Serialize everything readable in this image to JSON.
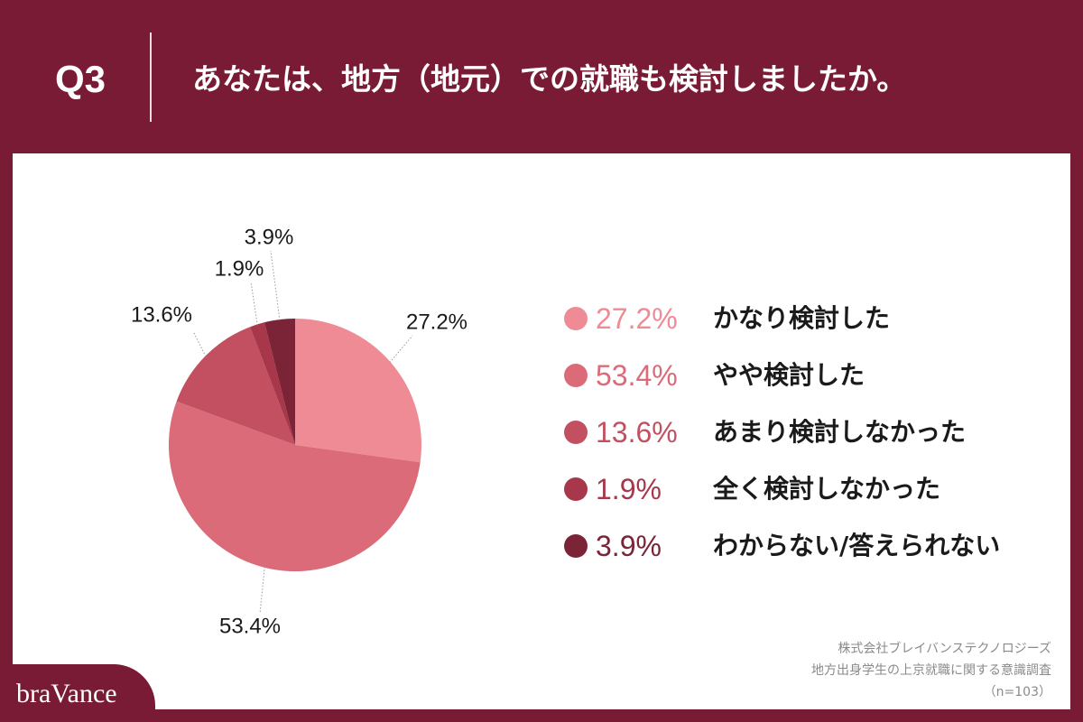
{
  "header": {
    "question_number": "Q3",
    "title": "あなたは、地方（地元）での就職も検討しましたか。"
  },
  "chart_data": {
    "type": "pie",
    "categories": [
      "かなり検討した",
      "やや検討した",
      "あまり検討しなかった",
      "全く検討しなかった",
      "わからない/答えられない"
    ],
    "values": [
      27.2,
      53.4,
      13.6,
      1.9,
      3.9
    ],
    "unit": "%",
    "colors": [
      "#ef8b94",
      "#db6b79",
      "#c25060",
      "#a8374b",
      "#7b2337"
    ],
    "start": "top",
    "direction": "clockwise",
    "legend_position": "right"
  },
  "footer": {
    "company": "株式会社ブレイバンステクノロジーズ",
    "survey_title": "地方出身学生の上京就職に関する意識調査",
    "sample_size": "（n=103）"
  },
  "brand": {
    "logo_text": "braVance",
    "primary_color": "#7a1b35"
  }
}
